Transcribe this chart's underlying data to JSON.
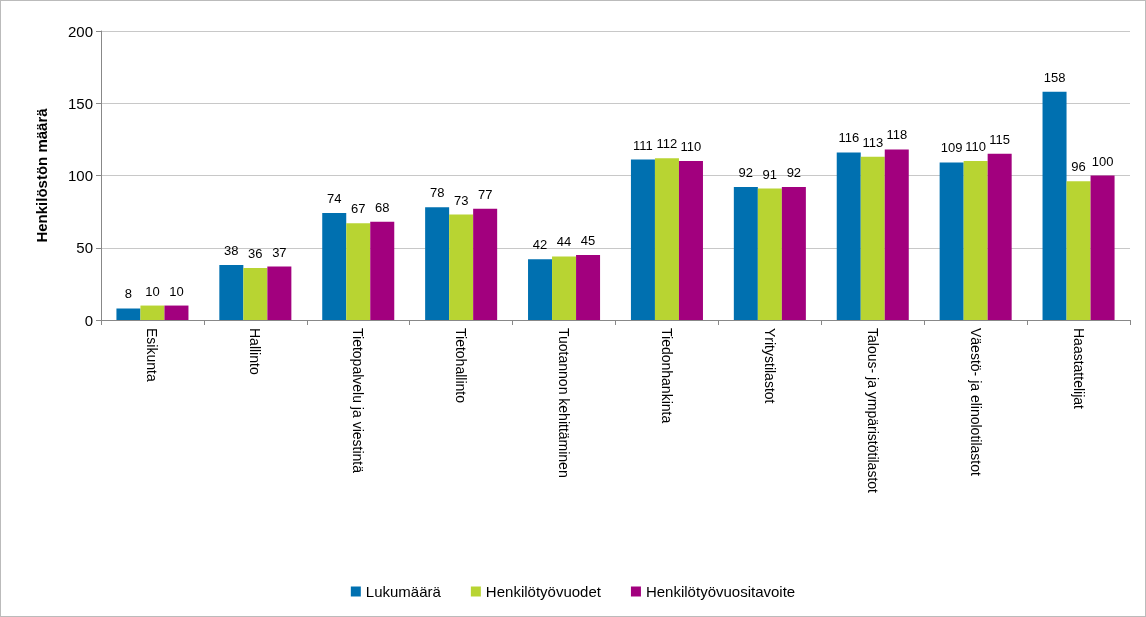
{
  "chart_data": {
    "type": "bar",
    "ylabel": "Henkilöstön määrä",
    "categories": [
      "Esikunta",
      "Hallinto",
      "Tietopalvelu ja viestintä",
      "Tietohallinto",
      "Tuotannon kehittäminen",
      "Tiedonhankinta",
      "Yritystilastot",
      "Talous- ja ympäristötilastot",
      "Väestö- ja elinolotilastot",
      "Haastattelijat"
    ],
    "series": [
      {
        "name": "Lukumäärä",
        "color": "#0070b0",
        "values": [
          8,
          38,
          74,
          78,
          42,
          111,
          92,
          116,
          109,
          158
        ]
      },
      {
        "name": "Henkilötyövuodet",
        "color": "#b8d432",
        "values": [
          10,
          36,
          67,
          73,
          44,
          112,
          91,
          113,
          110,
          96
        ]
      },
      {
        "name": "Henkilötyövuositavoite",
        "color": "#a2007e",
        "values": [
          10,
          37,
          68,
          77,
          45,
          110,
          92,
          118,
          115,
          100
        ]
      }
    ],
    "ylim": [
      0,
      200
    ],
    "yticks": [
      0,
      50,
      100,
      150,
      200
    ],
    "grid": "y",
    "legend": "bottom",
    "data_labels": true
  }
}
